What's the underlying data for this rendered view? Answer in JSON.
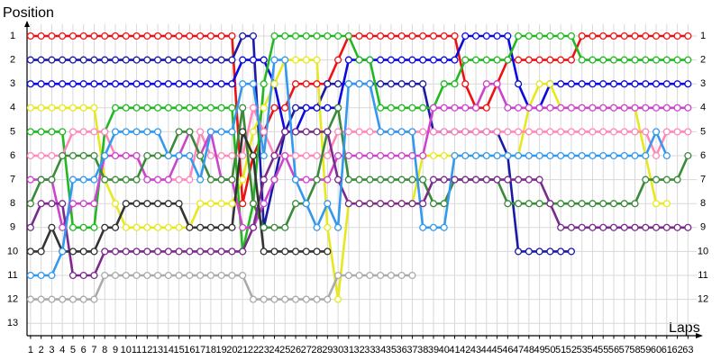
{
  "chart_data": {
    "type": "line",
    "y_label": "Position",
    "x_label": "Laps",
    "x": [
      1,
      2,
      3,
      4,
      5,
      6,
      7,
      8,
      9,
      10,
      11,
      12,
      13,
      14,
      15,
      16,
      17,
      18,
      19,
      20,
      21,
      22,
      23,
      24,
      25,
      26,
      27,
      28,
      29,
      30,
      31,
      32,
      33,
      34,
      35,
      36,
      37,
      38,
      39,
      40,
      41,
      42,
      43,
      44,
      45,
      46,
      47,
      48,
      49,
      50,
      51,
      52,
      53,
      54,
      55,
      56,
      57,
      58,
      59,
      60,
      61,
      62,
      63
    ],
    "xlim": [
      0.5,
      64.5
    ],
    "ylim": [
      0.5,
      13.5
    ],
    "y_inverted": true,
    "yticks": [
      1,
      2,
      3,
      4,
      5,
      6,
      7,
      8,
      9,
      10,
      11,
      12,
      13
    ],
    "y2lim": [
      0.5,
      13.5
    ],
    "y2ticks": [
      1,
      2,
      3,
      4,
      5,
      6,
      7,
      8,
      9,
      10,
      11,
      12
    ],
    "grid": true,
    "series": [
      {
        "color": "#ee1111",
        "values": [
          1,
          1,
          1,
          1,
          1,
          1,
          1,
          1,
          1,
          1,
          1,
          1,
          1,
          1,
          1,
          1,
          1,
          1,
          1,
          1,
          8,
          6,
          5,
          4,
          4,
          3,
          3,
          3,
          3,
          2,
          1,
          1,
          1,
          1,
          1,
          1,
          1,
          1,
          1,
          1,
          1,
          3,
          4,
          4,
          3,
          2,
          2,
          2,
          2,
          2,
          2,
          2,
          1,
          1,
          1,
          1,
          1,
          1,
          1,
          1,
          1,
          1,
          1
        ]
      },
      {
        "color": "#1a1aa6",
        "values": [
          2,
          2,
          2,
          2,
          2,
          2,
          2,
          2,
          2,
          2,
          2,
          2,
          2,
          2,
          2,
          2,
          2,
          2,
          2,
          2,
          1,
          1,
          9,
          7,
          5,
          4,
          4,
          4,
          3,
          3,
          3,
          3,
          3,
          3,
          3,
          3,
          3,
          3,
          5,
          5,
          5,
          5,
          5,
          5,
          5,
          6,
          10,
          10,
          10,
          10,
          10,
          10,
          null,
          null,
          null,
          null,
          null,
          null,
          null,
          null,
          null,
          null,
          null
        ]
      },
      {
        "color": "#0a0ae0",
        "values": [
          3,
          3,
          3,
          3,
          3,
          3,
          3,
          3,
          3,
          3,
          3,
          3,
          3,
          3,
          3,
          3,
          3,
          3,
          3,
          3,
          2,
          2,
          2,
          3,
          5,
          5,
          4,
          4,
          4,
          4,
          2,
          2,
          2,
          2,
          2,
          2,
          2,
          2,
          2,
          2,
          2,
          1,
          1,
          1,
          1,
          1,
          3,
          4,
          4,
          3,
          3,
          3,
          3,
          3,
          3,
          3,
          3,
          3,
          3,
          3,
          3,
          3,
          3
        ]
      },
      {
        "color": "#e8e820",
        "values": [
          4,
          4,
          4,
          4,
          4,
          4,
          4,
          7,
          8,
          9,
          9,
          9,
          9,
          9,
          9,
          9,
          8,
          8,
          8,
          8,
          7,
          5,
          4,
          3,
          2,
          2,
          2,
          2,
          9,
          12,
          8,
          8,
          8,
          8,
          8,
          8,
          8,
          6,
          6,
          6,
          6,
          6,
          6,
          6,
          6,
          6,
          6,
          4,
          3,
          3,
          4,
          4,
          4,
          4,
          4,
          4,
          4,
          4,
          6,
          8,
          8,
          null,
          null
        ]
      },
      {
        "color": "#22b822",
        "values": [
          5,
          5,
          5,
          5,
          9,
          9,
          9,
          5,
          4,
          4,
          4,
          4,
          4,
          4,
          4,
          4,
          4,
          4,
          4,
          4,
          10,
          8,
          3,
          1,
          1,
          1,
          1,
          1,
          1,
          1,
          1,
          2,
          2,
          4,
          4,
          4,
          4,
          4,
          4,
          3,
          3,
          2,
          2,
          2,
          2,
          2,
          1,
          1,
          1,
          1,
          1,
          1,
          2,
          2,
          2,
          2,
          2,
          2,
          2,
          2,
          2,
          2,
          2
        ]
      },
      {
        "color": "#ff88bb",
        "values": [
          6,
          6,
          6,
          6,
          5,
          5,
          5,
          5,
          6,
          6,
          6,
          7,
          7,
          7,
          7,
          7,
          5,
          6,
          6,
          6,
          6,
          4,
          5,
          6,
          6,
          6,
          6,
          6,
          6,
          5,
          5,
          5,
          5,
          5,
          5,
          5,
          5,
          5,
          5,
          5,
          5,
          5,
          5,
          5,
          5,
          5,
          5,
          5,
          5,
          5,
          5,
          5,
          5,
          5,
          5,
          5,
          5,
          5,
          5,
          6,
          5,
          5,
          5
        ]
      },
      {
        "color": "#cc44cc",
        "values": [
          7,
          7,
          7,
          9,
          8,
          8,
          8,
          6,
          6,
          6,
          6,
          7,
          7,
          7,
          6,
          5,
          6,
          5,
          7,
          7,
          9,
          9,
          8,
          7,
          6,
          7,
          7,
          7,
          7,
          6,
          6,
          6,
          6,
          6,
          6,
          6,
          6,
          6,
          4,
          4,
          4,
          4,
          4,
          3,
          3,
          4,
          4,
          4,
          4,
          4,
          4,
          4,
          4,
          4,
          4,
          4,
          4,
          4,
          4,
          4,
          4,
          4,
          4
        ]
      },
      {
        "color": "#3a8a3a",
        "values": [
          8,
          7,
          7,
          6,
          6,
          6,
          6,
          7,
          7,
          7,
          7,
          6,
          6,
          6,
          5,
          5,
          6,
          7,
          7,
          7,
          4,
          8,
          9,
          9,
          9,
          8,
          8,
          7,
          5,
          4,
          7,
          7,
          7,
          7,
          7,
          7,
          7,
          7,
          8,
          8,
          7,
          7,
          7,
          7,
          7,
          8,
          8,
          8,
          8,
          8,
          8,
          8,
          8,
          8,
          8,
          8,
          8,
          8,
          7,
          7,
          7,
          7,
          6
        ]
      },
      {
        "color": "#7a2a8a",
        "values": [
          9,
          8,
          8,
          8,
          11,
          11,
          11,
          10,
          10,
          10,
          10,
          10,
          10,
          10,
          10,
          10,
          10,
          10,
          10,
          10,
          10,
          9,
          7,
          6,
          5,
          5,
          5,
          5,
          5,
          7,
          8,
          8,
          8,
          8,
          8,
          8,
          8,
          8,
          7,
          7,
          7,
          7,
          7,
          7,
          7,
          7,
          7,
          7,
          7,
          8,
          9,
          9,
          9,
          9,
          9,
          9,
          9,
          9,
          9,
          9,
          9,
          9,
          9
        ]
      },
      {
        "color": "#333333",
        "values": [
          10,
          10,
          9,
          10,
          10,
          10,
          10,
          9,
          9,
          8,
          8,
          8,
          8,
          8,
          8,
          9,
          9,
          9,
          9,
          9,
          5,
          6,
          10,
          10,
          10,
          10,
          10,
          10,
          10,
          null,
          null,
          null,
          null,
          null,
          null,
          null,
          null,
          null,
          null,
          null,
          null,
          null,
          null,
          null,
          null,
          null,
          null,
          null,
          null,
          null,
          null,
          null,
          null,
          null,
          null,
          null,
          null,
          null,
          null,
          null,
          null,
          null,
          null
        ]
      },
      {
        "color": "#3399ee",
        "values": [
          11,
          11,
          11,
          10,
          7,
          7,
          7,
          6,
          5,
          5,
          5,
          5,
          5,
          6,
          6,
          6,
          7,
          5,
          5,
          5,
          3,
          3,
          6,
          2,
          2,
          7,
          8,
          9,
          8,
          9,
          3,
          3,
          3,
          5,
          5,
          5,
          5,
          9,
          9,
          9,
          6,
          6,
          6,
          6,
          6,
          6,
          6,
          6,
          6,
          6,
          6,
          6,
          6,
          6,
          6,
          6,
          6,
          6,
          6,
          5,
          6,
          null,
          null
        ]
      },
      {
        "color": "#aaaaaa",
        "values": [
          12,
          12,
          12,
          12,
          12,
          12,
          12,
          11,
          11,
          11,
          11,
          11,
          11,
          11,
          11,
          11,
          11,
          11,
          11,
          11,
          11,
          12,
          12,
          12,
          12,
          12,
          12,
          12,
          12,
          11,
          11,
          11,
          11,
          11,
          11,
          11,
          11,
          null,
          null,
          null,
          null,
          null,
          null,
          null,
          null,
          null,
          null,
          null,
          null,
          null,
          null,
          null,
          null,
          null,
          null,
          null,
          null,
          null,
          null,
          null,
          null,
          null,
          null
        ]
      }
    ]
  }
}
